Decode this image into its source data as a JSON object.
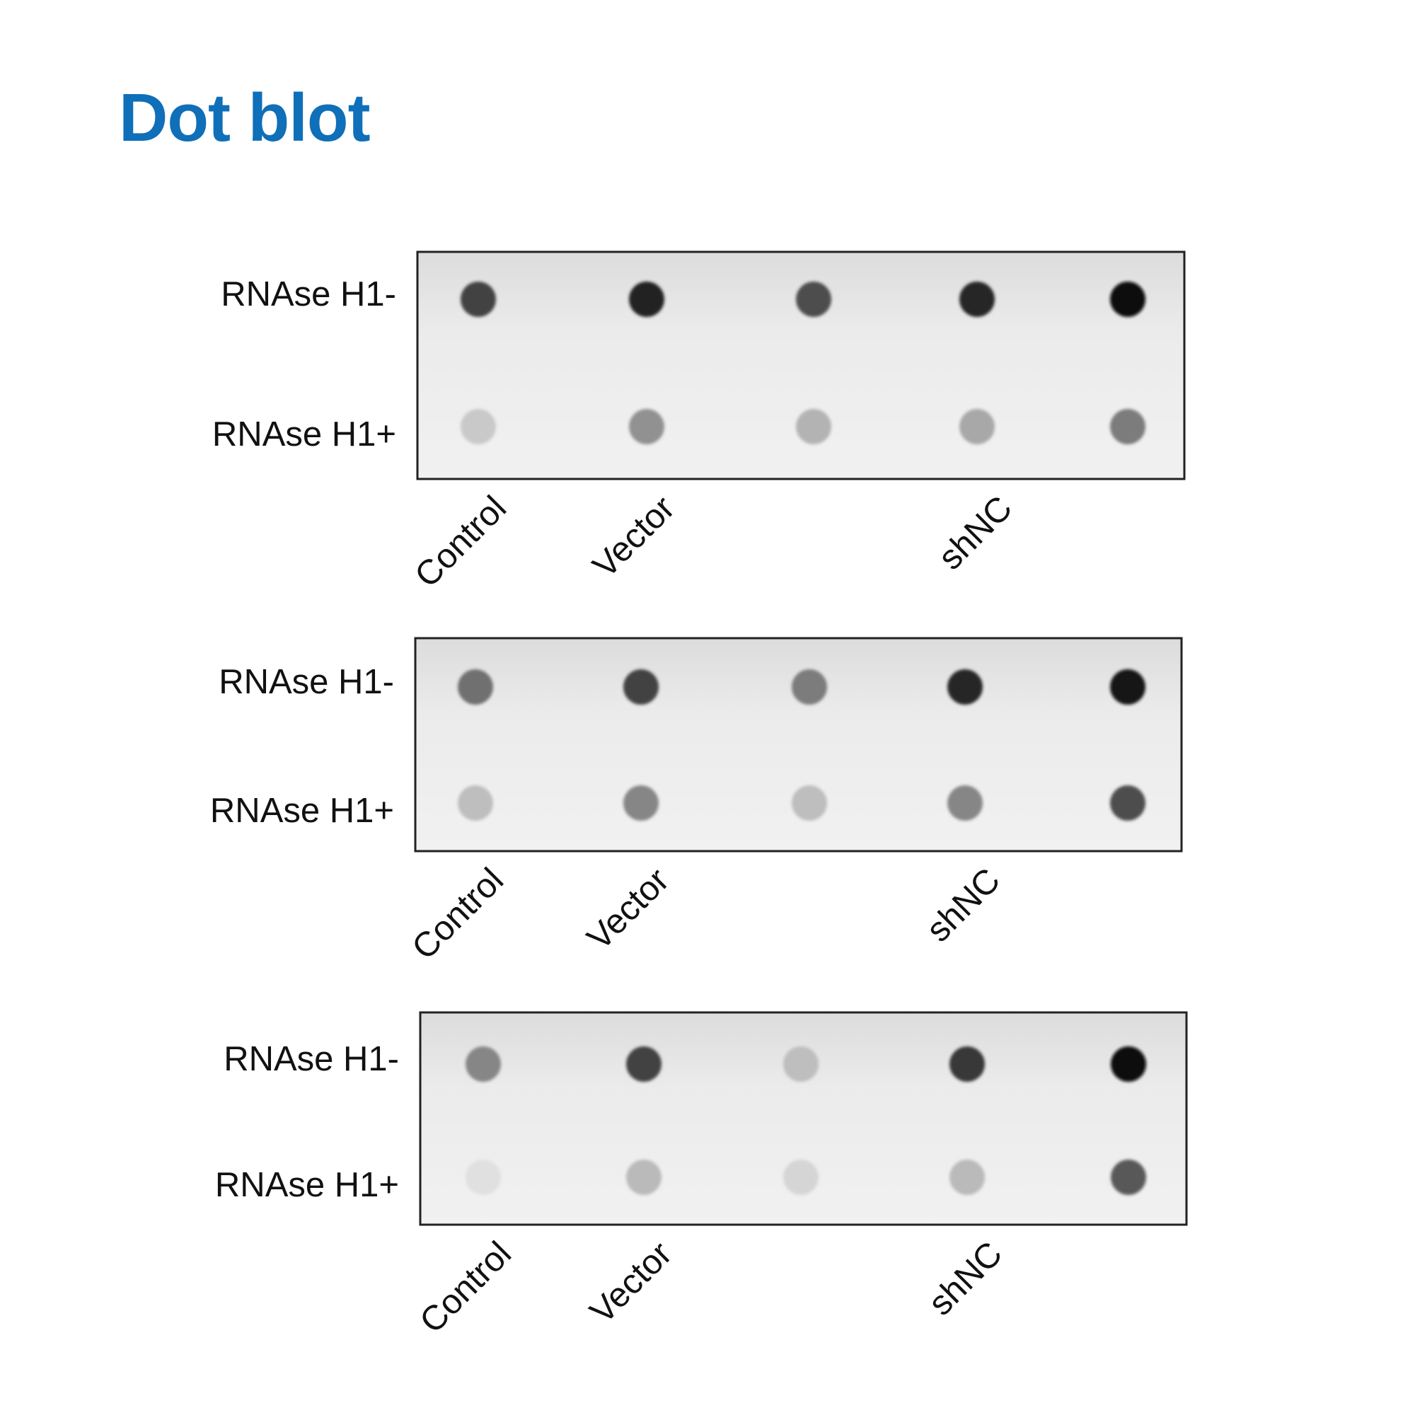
{
  "title": "Dot blot",
  "colors": {
    "title": "#0f6fb8",
    "membrane": "#ececec",
    "dot": "#000000",
    "frame": "#222222"
  },
  "chart_data": {
    "type": "dot-blot",
    "title": "Dot blot",
    "row_labels": [
      "RNAse H1-",
      "RNAse H1+"
    ],
    "column_count": 5,
    "column_labels": [
      {
        "column": 0,
        "label": "Control"
      },
      {
        "column": 1,
        "label": "Vector"
      },
      {
        "column": 3,
        "label": "shNC"
      }
    ],
    "intensity_scale": "relative darkness 0-1",
    "panels": [
      {
        "rows": [
          [
            0.75,
            0.9,
            0.7,
            0.88,
            1.0
          ],
          [
            0.15,
            0.4,
            0.25,
            0.3,
            0.5
          ]
        ]
      },
      {
        "rows": [
          [
            0.55,
            0.75,
            0.5,
            0.88,
            0.95
          ],
          [
            0.2,
            0.45,
            0.2,
            0.45,
            0.7
          ]
        ]
      },
      {
        "rows": [
          [
            0.45,
            0.75,
            0.2,
            0.8,
            1.0
          ],
          [
            0.05,
            0.22,
            0.1,
            0.22,
            0.65
          ]
        ]
      }
    ]
  }
}
